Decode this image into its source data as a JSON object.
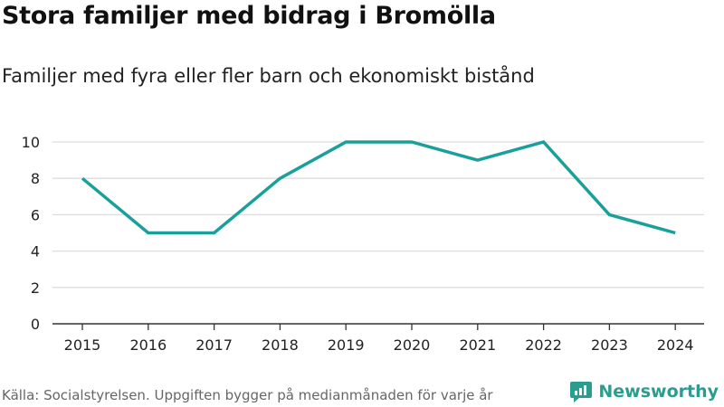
{
  "title": "Stora familjer med bidrag i Bromölla",
  "subtitle": "Familjer med fyra eller fler barn och ekonomiskt bistånd",
  "source": "Källa: Socialstyrelsen. Uppgiften bygger på medianmånaden för varje år",
  "brand": {
    "name": "Newsworthy",
    "color": "#2a9d8f",
    "icon": "newsworthy-logo-icon"
  },
  "colors": {
    "line": "#1aa09a",
    "grid": "#dddddd",
    "axis": "#333333"
  },
  "chart_data": {
    "type": "line",
    "title": "Stora familjer med bidrag i Bromölla",
    "subtitle": "Familjer med fyra eller fler barn och ekonomiskt bistånd",
    "xlabel": "",
    "ylabel": "",
    "categories": [
      "2015",
      "2016",
      "2017",
      "2018",
      "2019",
      "2020",
      "2021",
      "2022",
      "2023",
      "2024"
    ],
    "series": [
      {
        "name": "Familjer",
        "values": [
          8,
          5,
          5,
          8,
          10,
          10,
          9,
          10,
          6,
          5
        ]
      }
    ],
    "ylim": [
      0,
      10
    ],
    "yticks": [
      0,
      2,
      4,
      6,
      8,
      10
    ],
    "grid": true
  }
}
